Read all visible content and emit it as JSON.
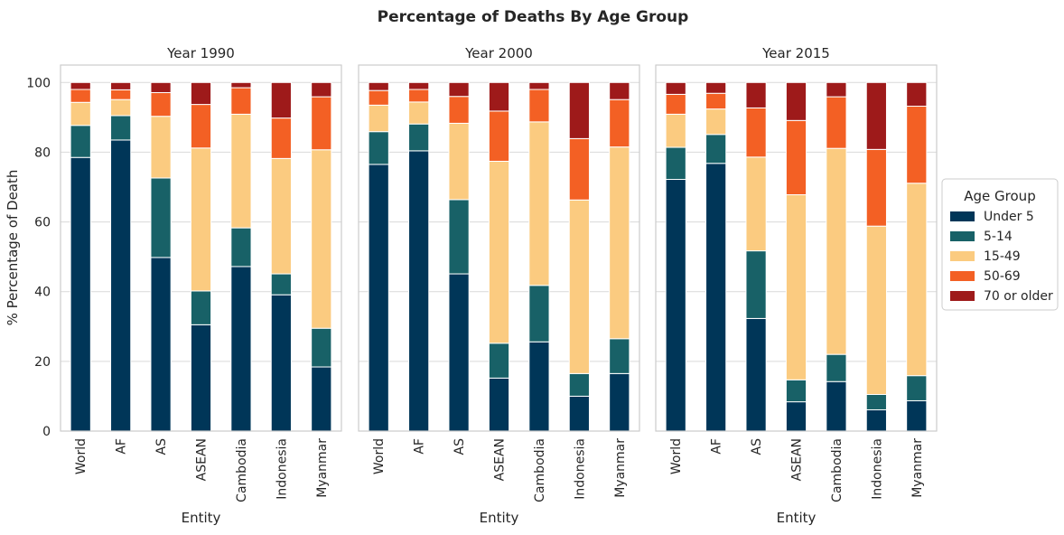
{
  "chart_data": {
    "type": "bar",
    "stacked": true,
    "title": "Percentage of Deaths By Age Group",
    "ylabel": "% Percentage of Death",
    "xlabel": "Entity",
    "ylim": [
      0,
      105
    ],
    "yticks": [
      0,
      20,
      40,
      60,
      80,
      100
    ],
    "grid": true,
    "legend": {
      "title": "Age Group",
      "position": "right-center",
      "entries": [
        "Under 5",
        "5-14",
        "15-49",
        "50-69",
        "70 or older"
      ]
    },
    "colors": {
      "Under 5": "#003658",
      "5-14": "#186167",
      "15-49": "#fbcb80",
      "50-69": "#f36024",
      "70 or older": "#9e1a1a"
    },
    "categories": [
      "World",
      "AF",
      "AS",
      "ASEAN",
      "Cambodia",
      "Indonesia",
      "Myanmar"
    ],
    "panels": [
      {
        "title": "Year 1990",
        "series": [
          {
            "name": "Under 5",
            "values": [
              78.5,
              83.5,
              49.8,
              30.5,
              47.2,
              39.1,
              18.4
            ]
          },
          {
            "name": "5-14",
            "values": [
              9.2,
              7.0,
              22.8,
              9.7,
              11.1,
              6.0,
              11.1
            ]
          },
          {
            "name": "15-49",
            "values": [
              6.6,
              4.6,
              17.7,
              41.0,
              32.6,
              33.1,
              51.2
            ]
          },
          {
            "name": "50-69",
            "values": [
              3.7,
              2.8,
              6.8,
              12.5,
              7.6,
              11.6,
              15.2
            ]
          },
          {
            "name": "70 or older",
            "values": [
              2.0,
              2.1,
              2.9,
              6.3,
              1.5,
              10.2,
              4.1
            ]
          }
        ]
      },
      {
        "title": "Year 2000",
        "series": [
          {
            "name": "Under 5",
            "values": [
              76.5,
              80.4,
              45.1,
              15.2,
              25.6,
              10.0,
              16.5
            ]
          },
          {
            "name": "5-14",
            "values": [
              9.4,
              7.7,
              21.3,
              10.0,
              16.2,
              6.5,
              10.0
            ]
          },
          {
            "name": "15-49",
            "values": [
              7.6,
              6.3,
              21.9,
              52.2,
              46.9,
              49.8,
              55.0
            ]
          },
          {
            "name": "50-69",
            "values": [
              4.2,
              3.6,
              7.7,
              14.4,
              9.3,
              17.6,
              13.6
            ]
          },
          {
            "name": "70 or older",
            "values": [
              2.3,
              2.0,
              4.0,
              8.2,
              2.0,
              16.1,
              4.9
            ]
          }
        ]
      },
      {
        "title": "Year 2015",
        "series": [
          {
            "name": "Under 5",
            "values": [
              72.2,
              76.8,
              32.3,
              8.4,
              14.2,
              6.1,
              8.7
            ]
          },
          {
            "name": "5-14",
            "values": [
              9.2,
              8.3,
              19.4,
              6.3,
              7.8,
              4.4,
              7.2
            ]
          },
          {
            "name": "15-49",
            "values": [
              9.5,
              7.3,
              26.9,
              53.1,
              59.1,
              48.3,
              55.2
            ]
          },
          {
            "name": "50-69",
            "values": [
              5.7,
              4.5,
              14.1,
              21.3,
              14.8,
              22.0,
              22.1
            ]
          },
          {
            "name": "70 or older",
            "values": [
              3.4,
              3.1,
              7.3,
              10.9,
              4.1,
              19.2,
              6.8
            ]
          }
        ]
      }
    ]
  }
}
